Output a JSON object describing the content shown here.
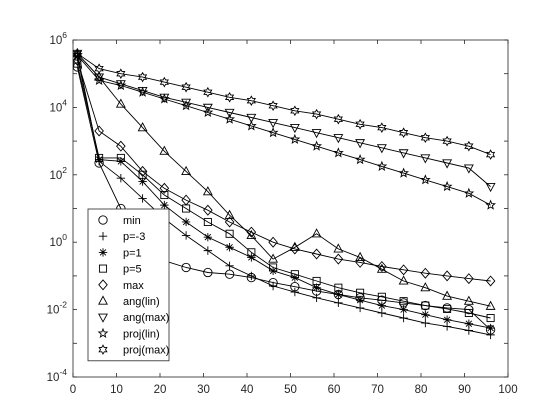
{
  "chart_data": {
    "type": "line",
    "title": "",
    "xlabel": "",
    "ylabel": "",
    "xlim": [
      0,
      100
    ],
    "ylim_log10": [
      -4,
      6
    ],
    "yscale": "log",
    "grid": false,
    "box": true,
    "legend_position": "lower-left",
    "x_ticks": [
      0,
      10,
      20,
      30,
      40,
      50,
      60,
      70,
      80,
      90,
      100
    ],
    "x_tick_labels": [
      "0",
      "10",
      "20",
      "30",
      "40",
      "50",
      "60",
      "70",
      "80",
      "90",
      "100"
    ],
    "y_ticks_log10": [
      -4,
      -2,
      0,
      2,
      4,
      6
    ],
    "y_tick_labels": [
      {
        "base": "10",
        "exp": "-4"
      },
      {
        "base": "10",
        "exp": "-2"
      },
      {
        "base": "10",
        "exp": "0"
      },
      {
        "base": "10",
        "exp": "2"
      },
      {
        "base": "10",
        "exp": "4"
      },
      {
        "base": "10",
        "exp": "6"
      }
    ],
    "line_color": "#000000",
    "series": [
      {
        "name": "min",
        "marker": "circle",
        "marker_step": 5,
        "x": [
          1,
          6,
          11,
          16,
          21,
          26,
          31,
          36,
          41,
          46,
          51,
          56,
          61,
          66,
          71,
          76,
          81,
          86,
          91,
          96
        ],
        "y_log10": [
          5.2,
          2.35,
          1.0,
          0.05,
          -0.55,
          -0.75,
          -0.9,
          -0.95,
          -1.05,
          -1.2,
          -1.32,
          -1.45,
          -1.55,
          -1.65,
          -1.72,
          -1.8,
          -1.88,
          -1.95,
          -2.0,
          -2.6
        ]
      },
      {
        "name": "p=-3",
        "marker": "plus",
        "marker_step": 5,
        "x": [
          1,
          6,
          11,
          16,
          21,
          26,
          31,
          36,
          41,
          46,
          51,
          56,
          61,
          66,
          71,
          76,
          81,
          86,
          91,
          96
        ],
        "y_log10": [
          5.6,
          2.4,
          1.9,
          1.3,
          0.7,
          0.2,
          -0.25,
          -0.7,
          -1.0,
          -1.3,
          -1.48,
          -1.65,
          -1.8,
          -1.95,
          -2.1,
          -2.25,
          -2.4,
          -2.5,
          -2.62,
          -2.75
        ]
      },
      {
        "name": "p=1",
        "marker": "asterisk",
        "marker_step": 5,
        "x": [
          1,
          6,
          11,
          16,
          21,
          26,
          31,
          36,
          41,
          46,
          51,
          56,
          61,
          66,
          71,
          76,
          81,
          86,
          91,
          96
        ],
        "y_log10": [
          5.5,
          2.45,
          2.4,
          1.8,
          1.1,
          0.6,
          0.15,
          -0.15,
          -0.45,
          -0.85,
          -1.05,
          -1.35,
          -1.55,
          -1.72,
          -1.88,
          -2.0,
          -2.15,
          -2.3,
          -2.42,
          -2.55
        ]
      },
      {
        "name": "p=5",
        "marker": "square",
        "marker_step": 5,
        "x": [
          1,
          6,
          11,
          16,
          21,
          26,
          31,
          36,
          41,
          46,
          51,
          56,
          61,
          66,
          71,
          76,
          81,
          86,
          91,
          96
        ],
        "y_log10": [
          5.3,
          2.5,
          2.5,
          2.0,
          1.4,
          1.0,
          0.6,
          0.25,
          -0.3,
          -0.75,
          -0.95,
          -1.15,
          -1.35,
          -1.5,
          -1.62,
          -1.75,
          -1.88,
          -1.98,
          -2.1,
          -2.25
        ]
      },
      {
        "name": "max",
        "marker": "diamond",
        "marker_step": 5,
        "x": [
          1,
          6,
          11,
          16,
          21,
          26,
          31,
          36,
          41,
          46,
          51,
          56,
          61,
          66,
          71,
          76,
          81,
          86,
          91,
          96
        ],
        "y_log10": [
          5.4,
          3.3,
          2.85,
          2.1,
          1.6,
          1.25,
          0.95,
          0.6,
          0.3,
          0.0,
          -0.2,
          -0.35,
          -0.5,
          -0.6,
          -0.72,
          -0.82,
          -0.92,
          -1.0,
          -1.08,
          -1.15
        ]
      },
      {
        "name": "ang(lin)",
        "marker": "triangle-up",
        "marker_step": 5,
        "x": [
          1,
          6,
          11,
          16,
          21,
          26,
          31,
          36,
          41,
          46,
          51,
          56,
          61,
          66,
          71,
          76,
          81,
          86,
          91,
          96
        ],
        "y_log10": [
          5.6,
          4.9,
          4.1,
          3.4,
          2.7,
          2.1,
          1.5,
          0.8,
          0.2,
          -0.5,
          -0.15,
          0.25,
          -0.2,
          -0.45,
          -0.8,
          -1.15,
          -1.35,
          -1.6,
          -1.75,
          -1.9
        ]
      },
      {
        "name": "ang(max)",
        "marker": "triangle-down",
        "marker_step": 5,
        "x": [
          1,
          6,
          11,
          16,
          21,
          26,
          31,
          36,
          41,
          46,
          51,
          56,
          61,
          66,
          71,
          76,
          81,
          86,
          91,
          96
        ],
        "y_log10": [
          5.6,
          4.9,
          4.7,
          4.5,
          4.3,
          4.15,
          4.0,
          3.85,
          3.7,
          3.55,
          3.4,
          3.25,
          3.1,
          2.95,
          2.8,
          2.65,
          2.5,
          2.35,
          2.2,
          1.65
        ]
      },
      {
        "name": "proj(lin)",
        "marker": "pentagram",
        "marker_step": 5,
        "x": [
          1,
          6,
          11,
          16,
          21,
          26,
          31,
          36,
          41,
          46,
          51,
          56,
          61,
          66,
          71,
          76,
          81,
          86,
          91,
          96
        ],
        "y_log10": [
          5.55,
          4.8,
          4.65,
          4.45,
          4.25,
          4.05,
          3.85,
          3.65,
          3.45,
          3.25,
          3.05,
          2.85,
          2.65,
          2.45,
          2.25,
          2.05,
          1.85,
          1.65,
          1.45,
          1.1
        ]
      },
      {
        "name": "proj(max)",
        "marker": "hexagram",
        "marker_step": 5,
        "x": [
          1,
          6,
          11,
          16,
          21,
          26,
          31,
          36,
          41,
          46,
          51,
          56,
          61,
          66,
          71,
          76,
          81,
          86,
          91,
          96
        ],
        "y_log10": [
          5.6,
          5.15,
          5.0,
          4.9,
          4.75,
          4.6,
          4.45,
          4.3,
          4.2,
          4.05,
          3.9,
          3.8,
          3.65,
          3.5,
          3.4,
          3.25,
          3.1,
          3.0,
          2.85,
          2.6
        ]
      }
    ]
  }
}
